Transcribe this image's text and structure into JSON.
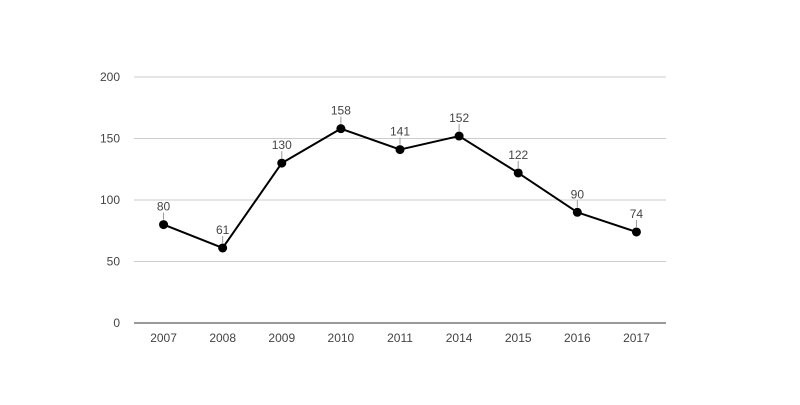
{
  "chart_data": {
    "type": "line",
    "title": "",
    "xlabel": "",
    "ylabel": "",
    "categories": [
      "2007",
      "2008",
      "2009",
      "2010",
      "2011",
      "2014",
      "2015",
      "2016",
      "2017"
    ],
    "series": [
      {
        "values": [
          80,
          61,
          130,
          158,
          141,
          152,
          122,
          90,
          74
        ]
      }
    ],
    "data_labels": [
      "80",
      "61",
      "130",
      "158",
      "141",
      "152",
      "122",
      "90",
      "74"
    ],
    "y_ticks": [
      "0",
      "50",
      "100",
      "150",
      "200"
    ],
    "ylim": [
      0,
      200
    ],
    "grid": true,
    "legend": "none",
    "colors": {
      "line": "#000000",
      "marker": "#000000",
      "grid": "#cccccc",
      "axis": "#333333",
      "text": "#444444"
    }
  }
}
